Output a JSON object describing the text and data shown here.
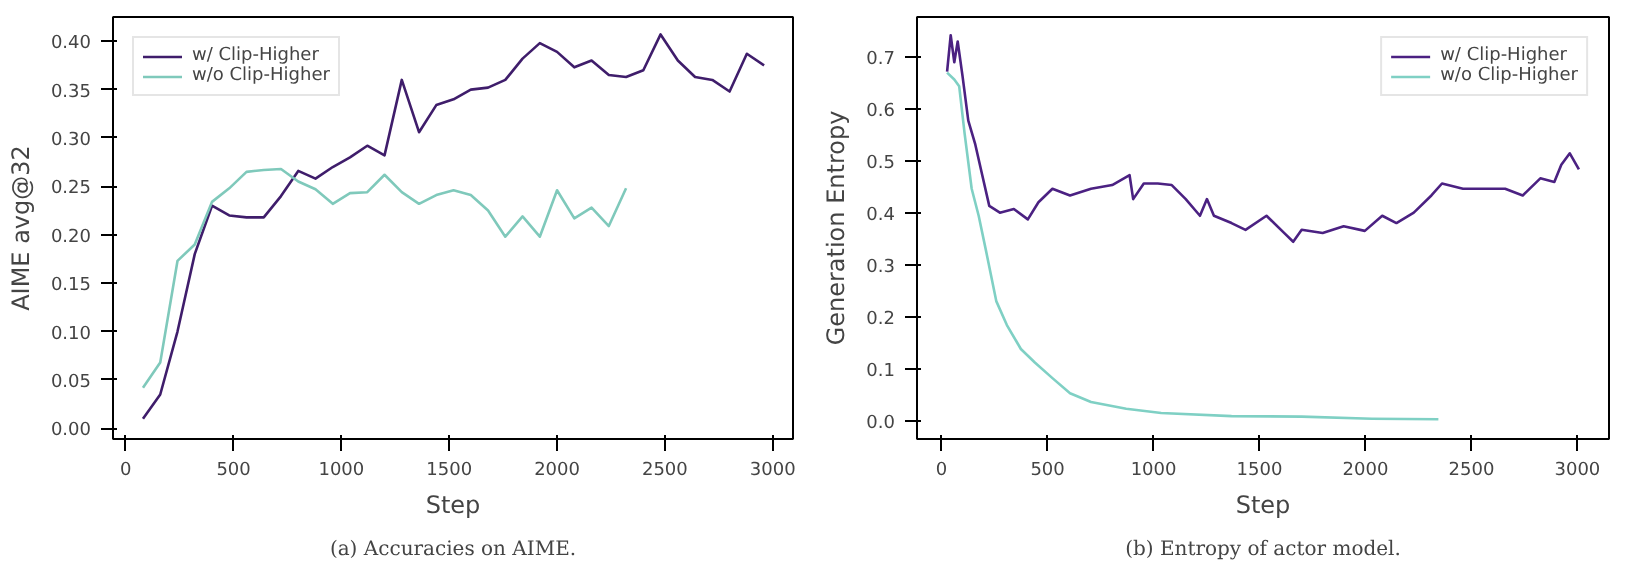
{
  "chart_data": [
    {
      "type": "line",
      "xlabel": "Step",
      "ylabel": "AIME avg@32",
      "annotations": [
        "(a) Accuracies on AIME."
      ],
      "legend": "top left",
      "grid": false,
      "line_style": "solid",
      "marker": "none",
      "xlim": [
        -59,
        3094
      ],
      "xticks": [
        0,
        500,
        1000,
        1500,
        2000,
        2500,
        3000
      ],
      "ylim": [
        -0.011,
        0.425
      ],
      "yticks": [
        {
          "value": 0,
          "label": "0.00"
        },
        {
          "value": 0.05,
          "label": "0.05"
        },
        {
          "value": 0.1,
          "label": "0.10"
        },
        {
          "value": 0.15,
          "label": "0.15"
        },
        {
          "value": 0.2,
          "label": "0.20"
        },
        {
          "value": 0.25,
          "label": "0.25"
        },
        {
          "value": 0.3,
          "label": "0.30"
        },
        {
          "value": 0.35,
          "label": "0.35"
        },
        {
          "value": 0.4,
          "label": "0.40"
        }
      ],
      "series": [
        {
          "name": "w/ Clip-Higher",
          "color": "#3f1d6b",
          "x": [
            80,
            160,
            240,
            320,
            400,
            480,
            560,
            640,
            720,
            800,
            880,
            960,
            1040,
            1120,
            1200,
            1280,
            1360,
            1440,
            1520,
            1600,
            1680,
            1760,
            1840,
            1920,
            2000,
            2080,
            2160,
            2240,
            2320,
            2400,
            2480,
            2560,
            2640,
            2720,
            2800,
            2880,
            2960
          ],
          "values": [
            0.01,
            0.035,
            0.1,
            0.18,
            0.23,
            0.22,
            0.218,
            0.218,
            0.24,
            0.266,
            0.258,
            0.27,
            0.28,
            0.292,
            0.282,
            0.36,
            0.306,
            0.334,
            0.34,
            0.35,
            0.352,
            0.36,
            0.382,
            0.398,
            0.389,
            0.373,
            0.38,
            0.365,
            0.363,
            0.37,
            0.407,
            0.38,
            0.363,
            0.36,
            0.348,
            0.387,
            0.375
          ]
        },
        {
          "name": "w/o Clip-Higher",
          "color": "#7fc9bb",
          "x": [
            80,
            160,
            240,
            320,
            400,
            480,
            560,
            640,
            720,
            800,
            880,
            960,
            1040,
            1120,
            1200,
            1280,
            1360,
            1440,
            1520,
            1600,
            1680,
            1760,
            1840,
            1920,
            2000,
            2080,
            2160,
            2240,
            2320
          ],
          "values": [
            0.042,
            0.068,
            0.173,
            0.19,
            0.234,
            0.248,
            0.265,
            0.267,
            0.268,
            0.255,
            0.247,
            0.232,
            0.243,
            0.244,
            0.262,
            0.244,
            0.232,
            0.241,
            0.246,
            0.241,
            0.225,
            0.198,
            0.219,
            0.198,
            0.246,
            0.217,
            0.228,
            0.209,
            0.248
          ]
        }
      ]
    },
    {
      "type": "line",
      "xlabel": "Step",
      "ylabel": "Generation Entropy",
      "annotations": [
        "(b) Entropy of actor model."
      ],
      "legend": "top right",
      "grid": false,
      "line_style": "solid",
      "marker": "none",
      "xlim": [
        -116,
        3149
      ],
      "xticks": [
        0,
        500,
        1000,
        1500,
        2000,
        2500,
        3000
      ],
      "ylim": [
        -0.034,
        0.777
      ],
      "yticks": [
        {
          "value": 0,
          "label": "0.0"
        },
        {
          "value": 0.1,
          "label": "0.1"
        },
        {
          "value": 0.2,
          "label": "0.2"
        },
        {
          "value": 0.3,
          "label": "0.3"
        },
        {
          "value": 0.4,
          "label": "0.4"
        },
        {
          "value": 0.5,
          "label": "0.5"
        },
        {
          "value": 0.6,
          "label": "0.6"
        },
        {
          "value": 0.7,
          "label": "0.7"
        }
      ],
      "series": [
        {
          "name": "w/ Clip-Higher",
          "color": "#4b2182",
          "x": [
            26,
            43,
            60,
            76,
            99,
            126,
            159,
            192,
            225,
            275,
            341,
            407,
            457,
            523,
            606,
            705,
            805,
            887,
            904,
            954,
            1020,
            1086,
            1152,
            1219,
            1252,
            1285,
            1368,
            1434,
            1533,
            1616,
            1659,
            1699,
            1798,
            1897,
            1997,
            2079,
            2146,
            2228,
            2311,
            2361,
            2460,
            2560,
            2659,
            2742,
            2825,
            2891,
            2924,
            2964,
            3007
          ],
          "values": [
            0.672,
            0.742,
            0.69,
            0.73,
            0.663,
            0.578,
            0.532,
            0.473,
            0.414,
            0.401,
            0.408,
            0.388,
            0.421,
            0.447,
            0.434,
            0.447,
            0.454,
            0.473,
            0.427,
            0.457,
            0.457,
            0.454,
            0.427,
            0.395,
            0.427,
            0.395,
            0.381,
            0.368,
            0.395,
            0.362,
            0.345,
            0.368,
            0.362,
            0.375,
            0.366,
            0.395,
            0.381,
            0.401,
            0.434,
            0.457,
            0.447,
            0.447,
            0.447,
            0.434,
            0.467,
            0.46,
            0.493,
            0.515,
            0.484
          ]
        },
        {
          "name": "w/o Clip-Higher",
          "color": "#7fd0c4",
          "x": [
            26,
            60,
            83,
            109,
            142,
            175,
            209,
            258,
            308,
            374,
            440,
            523,
            606,
            705,
            871,
            1036,
            1368,
            1699,
            2030,
            2344
          ],
          "values": [
            0.67,
            0.657,
            0.644,
            0.552,
            0.447,
            0.395,
            0.329,
            0.231,
            0.185,
            0.139,
            0.113,
            0.083,
            0.054,
            0.037,
            0.024,
            0.016,
            0.01,
            0.009,
            0.005,
            0.004
          ]
        }
      ]
    }
  ]
}
